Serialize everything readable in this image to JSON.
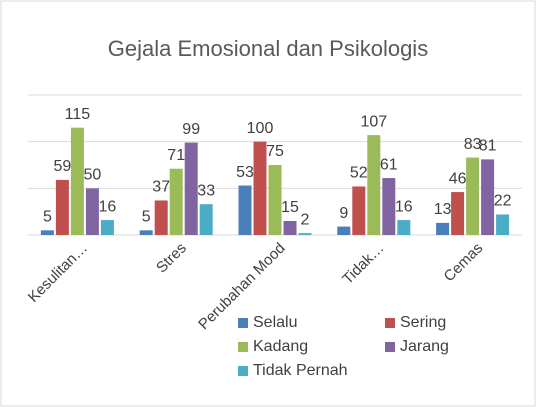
{
  "chart_data": {
    "type": "bar",
    "title": "Gejala Emosional dan Psikologis",
    "categories": [
      "Kesulitan…",
      "Stres",
      "Perubahan Mood",
      "Tidak…",
      "Cemas"
    ],
    "series": [
      {
        "name": "Selalu",
        "color": "#4a7ebb",
        "values": [
          5,
          5,
          53,
          9,
          13
        ]
      },
      {
        "name": "Sering",
        "color": "#c0504d",
        "values": [
          59,
          37,
          100,
          52,
          46
        ]
      },
      {
        "name": "Kadang",
        "color": "#9bbb59",
        "values": [
          115,
          71,
          75,
          107,
          83
        ]
      },
      {
        "name": "Jarang",
        "color": "#8064a2",
        "values": [
          50,
          99,
          15,
          61,
          81
        ]
      },
      {
        "name": "Tidak Pernah",
        "color": "#4bacc6",
        "values": [
          16,
          33,
          2,
          16,
          22
        ]
      }
    ],
    "ylim": [
      0,
      150
    ],
    "yticks": [
      0,
      50,
      100,
      150
    ],
    "grid": true,
    "legend": "bottom"
  }
}
